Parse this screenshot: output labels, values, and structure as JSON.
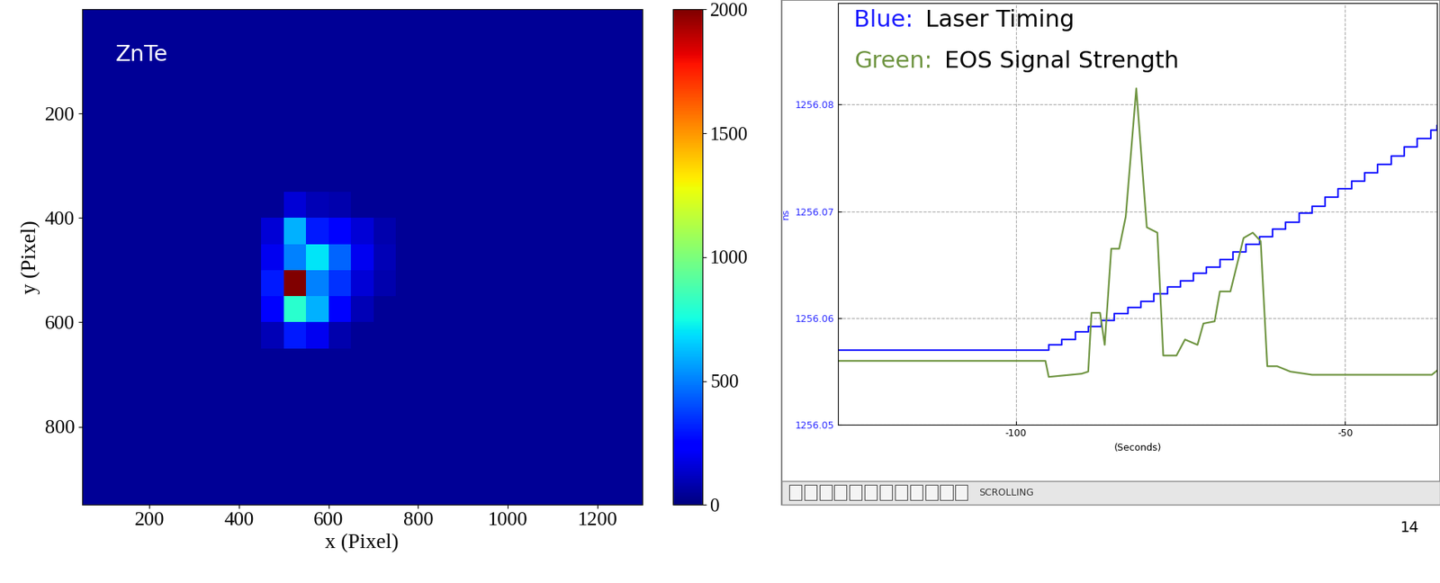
{
  "chart_data": [
    {
      "type": "heatmap",
      "annotation": "ZnTe",
      "x_label": "x (Pixel)",
      "y_label": "y (Pixel)",
      "xlim": [
        50,
        1300
      ],
      "ylim": [
        950,
        0
      ],
      "xticks": [
        200,
        400,
        600,
        800,
        1000,
        1200
      ],
      "yticks": [
        200,
        400,
        600,
        800
      ],
      "x_edges": [
        50,
        100,
        150,
        200,
        250,
        300,
        350,
        400,
        450,
        500,
        550,
        600,
        650,
        700,
        750,
        800,
        850,
        900,
        950,
        1000,
        1050,
        1100,
        1150,
        1200,
        1250,
        1300
      ],
      "y_edges": [
        0,
        50,
        100,
        150,
        200,
        250,
        300,
        350,
        400,
        450,
        500,
        550,
        600,
        650,
        700,
        750,
        800,
        850,
        900,
        950
      ],
      "cells": [
        [
          40,
          40,
          40,
          40,
          40,
          40,
          40,
          40,
          40,
          40,
          40,
          40,
          40,
          40,
          40,
          40,
          40,
          40,
          40,
          40,
          40,
          40,
          40,
          40,
          40
        ],
        [
          40,
          40,
          40,
          40,
          40,
          40,
          40,
          40,
          40,
          40,
          40,
          40,
          40,
          40,
          40,
          40,
          40,
          40,
          40,
          40,
          40,
          40,
          40,
          40,
          40
        ],
        [
          40,
          40,
          40,
          40,
          40,
          40,
          40,
          40,
          40,
          40,
          40,
          40,
          40,
          40,
          40,
          40,
          40,
          40,
          40,
          40,
          40,
          40,
          40,
          40,
          40
        ],
        [
          40,
          40,
          40,
          40,
          40,
          40,
          40,
          40,
          40,
          40,
          40,
          40,
          40,
          40,
          40,
          40,
          40,
          40,
          40,
          40,
          40,
          40,
          40,
          40,
          40
        ],
        [
          40,
          40,
          40,
          40,
          40,
          40,
          40,
          40,
          40,
          40,
          40,
          40,
          40,
          40,
          40,
          40,
          40,
          40,
          40,
          40,
          40,
          40,
          40,
          40,
          40
        ],
        [
          40,
          40,
          40,
          40,
          40,
          40,
          40,
          40,
          40,
          40,
          40,
          40,
          40,
          40,
          40,
          40,
          40,
          40,
          40,
          40,
          40,
          40,
          40,
          40,
          40
        ],
        [
          40,
          40,
          40,
          40,
          40,
          40,
          40,
          40,
          40,
          40,
          40,
          40,
          40,
          40,
          40,
          40,
          40,
          40,
          40,
          40,
          40,
          40,
          40,
          40,
          40
        ],
        [
          40,
          40,
          40,
          40,
          40,
          40,
          40,
          40,
          40,
          150,
          100,
          80,
          40,
          40,
          40,
          40,
          40,
          40,
          40,
          40,
          40,
          40,
          40,
          40,
          40
        ],
        [
          40,
          40,
          40,
          40,
          40,
          40,
          40,
          40,
          150,
          600,
          300,
          250,
          150,
          80,
          40,
          40,
          40,
          40,
          40,
          40,
          40,
          40,
          40,
          40,
          40
        ],
        [
          40,
          40,
          40,
          40,
          40,
          40,
          40,
          40,
          200,
          500,
          700,
          450,
          200,
          100,
          40,
          40,
          40,
          40,
          40,
          40,
          40,
          40,
          40,
          40,
          40
        ],
        [
          40,
          40,
          40,
          40,
          40,
          40,
          40,
          40,
          300,
          2000,
          500,
          350,
          150,
          80,
          40,
          40,
          40,
          40,
          40,
          40,
          40,
          40,
          40,
          40,
          40
        ],
        [
          40,
          40,
          40,
          40,
          40,
          40,
          40,
          40,
          250,
          800,
          600,
          250,
          100,
          40,
          40,
          40,
          40,
          40,
          40,
          40,
          40,
          40,
          40,
          40,
          40
        ],
        [
          40,
          40,
          40,
          40,
          40,
          40,
          40,
          40,
          100,
          300,
          200,
          80,
          40,
          40,
          40,
          40,
          40,
          40,
          40,
          40,
          40,
          40,
          40,
          40,
          40
        ],
        [
          40,
          40,
          40,
          40,
          40,
          40,
          40,
          40,
          40,
          40,
          40,
          40,
          40,
          40,
          40,
          40,
          40,
          40,
          40,
          40,
          40,
          40,
          40,
          40,
          40
        ],
        [
          40,
          40,
          40,
          40,
          40,
          40,
          40,
          40,
          40,
          40,
          40,
          40,
          40,
          40,
          40,
          40,
          40,
          40,
          40,
          40,
          40,
          40,
          40,
          40,
          40
        ],
        [
          40,
          40,
          40,
          40,
          40,
          40,
          40,
          40,
          40,
          40,
          40,
          40,
          40,
          40,
          40,
          40,
          40,
          40,
          40,
          40,
          40,
          40,
          40,
          40,
          40
        ],
        [
          40,
          40,
          40,
          40,
          40,
          40,
          40,
          40,
          40,
          40,
          40,
          40,
          40,
          40,
          40,
          40,
          40,
          40,
          40,
          40,
          40,
          40,
          40,
          40,
          40
        ],
        [
          40,
          40,
          40,
          40,
          40,
          40,
          40,
          40,
          40,
          40,
          40,
          40,
          40,
          40,
          40,
          40,
          40,
          40,
          40,
          40,
          40,
          40,
          40,
          40,
          40
        ],
        [
          40,
          40,
          40,
          40,
          40,
          40,
          40,
          40,
          40,
          40,
          40,
          40,
          40,
          40,
          40,
          40,
          40,
          40,
          40,
          40,
          40,
          40,
          40,
          40,
          40
        ]
      ],
      "colorbar": {
        "range": [
          0,
          2000
        ],
        "ticks": [
          0,
          500,
          1000,
          1500,
          2000
        ]
      }
    },
    {
      "type": "line",
      "x_label": "(Seconds)",
      "y_label": "ns",
      "xlim": [
        -127,
        -36
      ],
      "ylim": [
        1256.05,
        1256.0895
      ],
      "xticks": [
        -100,
        -50
      ],
      "yticks": [
        1256.05,
        1256.06,
        1256.07,
        1256.08
      ],
      "grid": true,
      "series": [
        {
          "name": "Laser Timing",
          "key": "Blue:",
          "color": "#1a1aff",
          "line_style": "steps",
          "x": [
            -127,
            -95,
            -93,
            -91,
            -89,
            -87,
            -85,
            -83,
            -81,
            -79,
            -77,
            -75,
            -73,
            -71,
            -69,
            -67,
            -65,
            -63,
            -61,
            -59,
            -57,
            -55,
            -53,
            -51,
            -49,
            -47,
            -45,
            -43,
            -41,
            -39,
            -37,
            -36
          ],
          "values": [
            1256.057,
            1256.0575,
            1256.058,
            1256.0587,
            1256.0592,
            1256.0598,
            1256.0604,
            1256.061,
            1256.0616,
            1256.0623,
            1256.0629,
            1256.0635,
            1256.0642,
            1256.0648,
            1256.0655,
            1256.0662,
            1256.0669,
            1256.0676,
            1256.0683,
            1256.069,
            1256.0698,
            1256.0705,
            1256.0713,
            1256.0721,
            1256.0728,
            1256.0736,
            1256.0744,
            1256.0752,
            1256.076,
            1256.0768,
            1256.0776,
            1256.078
          ]
        },
        {
          "name": "EOS Signal Strength",
          "key": "Green:",
          "color": "#6e9440",
          "line_style": "solid",
          "x": [
            -127,
            -95.5,
            -95,
            -90,
            -89,
            -88.5,
            -87.2,
            -86.5,
            -85.5,
            -84.3,
            -83.3,
            -81.7,
            -80.1,
            -78.5,
            -77.6,
            -75.6,
            -74.3,
            -72.4,
            -71.5,
            -69.8,
            -69,
            -67.4,
            -65.4,
            -64,
            -62.8,
            -61.8,
            -60.3,
            -58.3,
            -55,
            -36.8,
            -36
          ],
          "values": [
            1256.056,
            1256.056,
            1256.0545,
            1256.0548,
            1256.055,
            1256.0605,
            1256.0605,
            1256.0575,
            1256.0665,
            1256.0665,
            1256.0695,
            1256.0815,
            1256.0685,
            1256.068,
            1256.0565,
            1256.0565,
            1256.058,
            1256.0575,
            1256.0595,
            1256.0597,
            1256.0625,
            1256.0625,
            1256.0675,
            1256.068,
            1256.0672,
            1256.0555,
            1256.0555,
            1256.055,
            1256.0547,
            1256.0547,
            1256.0551
          ]
        }
      ]
    }
  ],
  "toolbar": {
    "text": "SCROLLING"
  },
  "page_number": "14"
}
